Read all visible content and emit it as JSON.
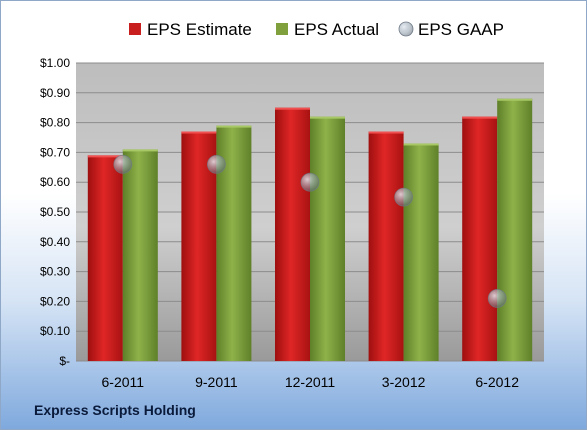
{
  "company": "Express Scripts Holding",
  "colors": {
    "estimate": "#c81e1e",
    "actual": "#7fa03c",
    "gaap": "#9aa7b4"
  },
  "chart_data": {
    "type": "bar",
    "categories": [
      "6-2011",
      "9-2011",
      "12-2011",
      "3-2012",
      "6-2012"
    ],
    "series": [
      {
        "name": "EPS Estimate",
        "values": [
          0.69,
          0.77,
          0.85,
          0.77,
          0.82
        ]
      },
      {
        "name": "EPS Actual",
        "values": [
          0.71,
          0.79,
          0.82,
          0.73,
          0.88
        ]
      },
      {
        "name": "EPS GAAP",
        "values": [
          0.66,
          0.66,
          0.6,
          0.55,
          0.21
        ]
      }
    ],
    "series_kinds": [
      "bar",
      "bar",
      "marker"
    ],
    "ylim": [
      0,
      1.0
    ],
    "yticks": [
      0,
      0.1,
      0.2,
      0.3,
      0.4,
      0.5,
      0.6,
      0.7,
      0.8,
      0.9,
      1.0
    ],
    "ytick_labels": [
      "$-",
      "$0.10",
      "$0.20",
      "$0.30",
      "$0.40",
      "$0.50",
      "$0.60",
      "$0.70",
      "$0.80",
      "$0.90",
      "$1.00"
    ],
    "legend_position": "top",
    "grid": true
  }
}
